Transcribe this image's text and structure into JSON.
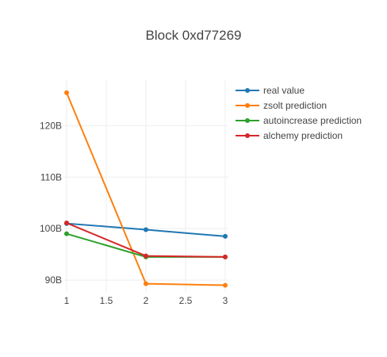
{
  "chart_data": {
    "type": "line",
    "title": "Block 0xd77269",
    "xlabel": "",
    "ylabel": "",
    "x": [
      1,
      2,
      3
    ],
    "xticks": [
      1,
      1.5,
      2,
      2.5,
      3
    ],
    "xtick_labels": [
      "1",
      "1.5",
      "2",
      "2.5",
      "3"
    ],
    "yticks": [
      90000000000,
      100000000000,
      110000000000,
      120000000000
    ],
    "ytick_labels": [
      "90B",
      "100B",
      "110B",
      "120B"
    ],
    "xlim": [
      0.96,
      3.04
    ],
    "ylim": [
      87700000000,
      129000000000
    ],
    "grid": true,
    "legend_position": "top-right",
    "series": [
      {
        "name": "real value",
        "color": "#1f77b4",
        "values": [
          101000000000,
          99800000000,
          98500000000
        ]
      },
      {
        "name": "zsolt prediction",
        "color": "#ff7f0e",
        "values": [
          126400000000,
          89300000000,
          89000000000
        ]
      },
      {
        "name": "autoincrease prediction",
        "color": "#2ca02c",
        "values": [
          99000000000,
          94500000000,
          94500000000
        ]
      },
      {
        "name": "alchemy prediction",
        "color": "#d62728",
        "values": [
          101100000000,
          94700000000,
          94500000000
        ]
      }
    ]
  }
}
